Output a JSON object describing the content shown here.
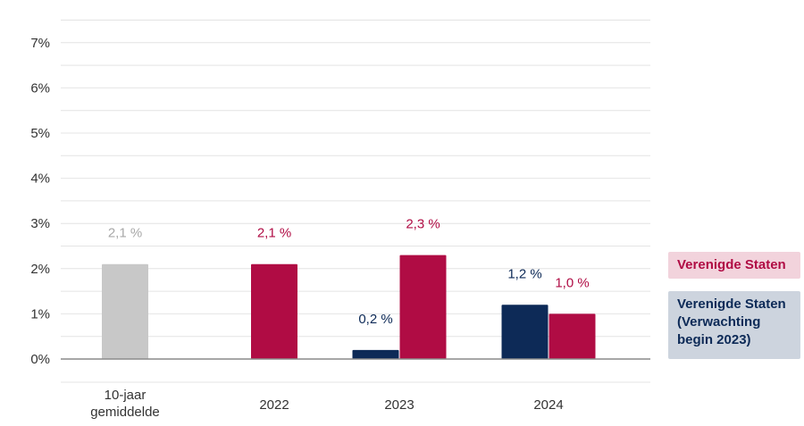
{
  "chart_data": {
    "type": "bar",
    "categories": [
      "10-jaar\ngemiddelde",
      "2022",
      "2023",
      "2024"
    ],
    "y_ticks": [
      "0%",
      "1%",
      "2%",
      "3%",
      "4%",
      "5%",
      "6%",
      "7%"
    ],
    "ylim": [
      0,
      7.5
    ],
    "grid": true,
    "colors": {
      "average": "#c8c8c8",
      "us": "#b00c44",
      "expectation": "#0d2a57"
    },
    "series": [
      {
        "name": "10-jaar gemiddelde",
        "key": "average",
        "values": [
          2.1,
          null,
          null,
          null
        ],
        "labels": [
          "2,1 %",
          "",
          "",
          ""
        ]
      },
      {
        "name": "Verenigde Staten (Verwachting begin 2023)",
        "key": "expectation",
        "values": [
          null,
          null,
          0.2,
          1.2
        ],
        "labels": [
          "",
          "",
          "0,2 %",
          "1,2 %"
        ]
      },
      {
        "name": "Verenigde Staten",
        "key": "us",
        "values": [
          null,
          2.1,
          2.3,
          1.0
        ],
        "labels": [
          "",
          "2,1 %",
          "2,3 %",
          "1,0 %"
        ]
      }
    ],
    "legend": [
      {
        "key": "us",
        "label": "Verenigde Staten"
      },
      {
        "key": "expectation",
        "label": "Verenigde Staten (Verwachting begin 2023)"
      }
    ],
    "legend_placement": "right"
  },
  "legend": {
    "us_label": "Verenigde Staten",
    "expectation_label": "Verenigde Staten (Verwachting begin 2023)"
  }
}
